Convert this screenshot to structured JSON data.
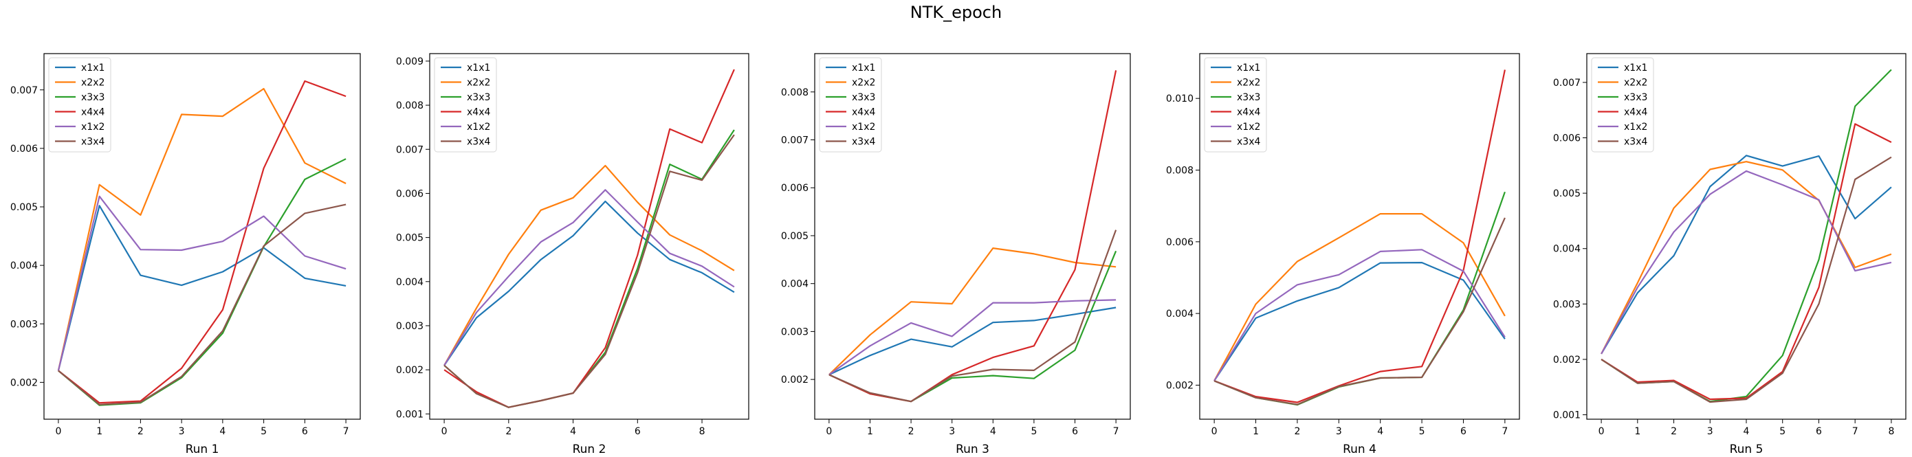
{
  "figure": {
    "title": "NTK_epoch"
  },
  "colors": {
    "x1x1": "#1f77b4",
    "x2x2": "#ff7f0e",
    "x3x3": "#2ca02c",
    "x4x4": "#d62728",
    "x1x2": "#9467bd",
    "x3x4": "#8c564b"
  },
  "chart_data": [
    {
      "type": "line",
      "title": "",
      "xlabel": "Run 1",
      "ylabel": "",
      "legend": "top-left",
      "grid": false,
      "x": [
        0,
        1,
        2,
        3,
        4,
        5,
        6,
        7
      ],
      "xlim": [
        -0.35,
        7.35
      ],
      "ylim": [
        0.00137,
        0.00762
      ],
      "xticks": [
        0,
        1,
        2,
        3,
        4,
        5,
        6,
        7
      ],
      "xtick_labels": [
        "0",
        "1",
        "2",
        "3",
        "4",
        "5",
        "6",
        "7"
      ],
      "yticks": [
        0.002,
        0.003,
        0.004,
        0.005,
        0.006,
        0.007
      ],
      "ytick_labels": [
        "0.002",
        "0.003",
        "0.004",
        "0.005",
        "0.006",
        "0.007"
      ],
      "series": [
        {
          "name": "x1x1",
          "values": [
            0.0022,
            0.00502,
            0.00383,
            0.00366,
            0.00389,
            0.0043,
            0.00378,
            0.00365
          ]
        },
        {
          "name": "x2x2",
          "values": [
            0.0022,
            0.00538,
            0.00486,
            0.00658,
            0.00655,
            0.00702,
            0.00575,
            0.0054
          ]
        },
        {
          "name": "x3x3",
          "values": [
            0.0022,
            0.00161,
            0.00165,
            0.00208,
            0.00284,
            0.00432,
            0.00547,
            0.00582
          ]
        },
        {
          "name": "x4x4",
          "values": [
            0.0022,
            0.00165,
            0.00168,
            0.00224,
            0.00324,
            0.00566,
            0.00715,
            0.00689
          ]
        },
        {
          "name": "x1x2",
          "values": [
            0.0022,
            0.00518,
            0.00427,
            0.00426,
            0.00441,
            0.00484,
            0.00416,
            0.00394
          ]
        },
        {
          "name": "x3x4",
          "values": [
            0.0022,
            0.00162,
            0.00166,
            0.0021,
            0.00288,
            0.00433,
            0.00489,
            0.00504
          ]
        }
      ]
    },
    {
      "type": "line",
      "title": "",
      "xlabel": "Run 2",
      "ylabel": "",
      "legend": "top-left",
      "grid": false,
      "x": [
        0,
        1,
        2,
        3,
        4,
        5,
        6,
        7,
        8,
        9
      ],
      "xlim": [
        -0.45,
        9.45
      ],
      "ylim": [
        0.00088,
        0.00917
      ],
      "xticks": [
        0,
        2,
        4,
        6,
        8
      ],
      "xtick_labels": [
        "0",
        "2",
        "4",
        "6",
        "8"
      ],
      "yticks": [
        0.001,
        0.002,
        0.003,
        0.004,
        0.005,
        0.006,
        0.007,
        0.008,
        0.009
      ],
      "ytick_labels": [
        "0.001",
        "0.002",
        "0.003",
        "0.004",
        "0.005",
        "0.006",
        "0.007",
        "0.008",
        "0.009"
      ],
      "series": [
        {
          "name": "x1x1",
          "values": [
            0.0021,
            0.00318,
            0.00378,
            0.0045,
            0.00504,
            0.00582,
            0.0051,
            0.0045,
            0.0042,
            0.00376
          ]
        },
        {
          "name": "x2x2",
          "values": [
            0.0021,
            0.0034,
            0.00462,
            0.00562,
            0.0059,
            0.00663,
            0.0058,
            0.00506,
            0.0047,
            0.00425
          ]
        },
        {
          "name": "x3x3",
          "values": [
            0.0021,
            0.00146,
            0.00115,
            0.0013,
            0.00147,
            0.0024,
            0.0043,
            0.00666,
            0.00632,
            0.00744
          ]
        },
        {
          "name": "x4x4",
          "values": [
            0.002,
            0.0015,
            0.00115,
            0.0013,
            0.00147,
            0.0025,
            0.0046,
            0.00746,
            0.00715,
            0.00881
          ]
        },
        {
          "name": "x1x2",
          "values": [
            0.0021,
            0.0033,
            0.00412,
            0.0049,
            0.00534,
            0.00608,
            0.00535,
            0.00464,
            0.00435,
            0.00388
          ]
        },
        {
          "name": "x3x4",
          "values": [
            0.0021,
            0.00146,
            0.00115,
            0.0013,
            0.00147,
            0.00235,
            0.0042,
            0.0065,
            0.0063,
            0.00733
          ]
        }
      ]
    },
    {
      "type": "line",
      "title": "",
      "xlabel": "Run 3",
      "ylabel": "",
      "legend": "top-left",
      "grid": false,
      "x": [
        0,
        1,
        2,
        3,
        4,
        5,
        6,
        7
      ],
      "xlim": [
        -0.35,
        7.35
      ],
      "ylim": [
        0.00117,
        0.0088
      ],
      "xticks": [
        0,
        1,
        2,
        3,
        4,
        5,
        6,
        7
      ],
      "xtick_labels": [
        "0",
        "1",
        "2",
        "3",
        "4",
        "5",
        "6",
        "7"
      ],
      "yticks": [
        0.002,
        0.003,
        0.004,
        0.005,
        0.006,
        0.007,
        0.008
      ],
      "ytick_labels": [
        "0.002",
        "0.003",
        "0.004",
        "0.005",
        "0.006",
        "0.007",
        "0.008"
      ],
      "series": [
        {
          "name": "x1x1",
          "values": [
            0.0021,
            0.0025,
            0.00284,
            0.00268,
            0.00319,
            0.00323,
            0.00336,
            0.0035
          ]
        },
        {
          "name": "x2x2",
          "values": [
            0.0021,
            0.00293,
            0.00362,
            0.00358,
            0.00474,
            0.00462,
            0.00444,
            0.00435
          ]
        },
        {
          "name": "x3x3",
          "values": [
            0.0021,
            0.0017,
            0.00154,
            0.00203,
            0.00208,
            0.00202,
            0.00261,
            0.00468
          ]
        },
        {
          "name": "x4x4",
          "values": [
            0.0021,
            0.0017,
            0.00154,
            0.0021,
            0.00246,
            0.0027,
            0.00429,
            0.00845
          ]
        },
        {
          "name": "x1x2",
          "values": [
            0.0021,
            0.0027,
            0.00318,
            0.0029,
            0.0036,
            0.0036,
            0.00364,
            0.00366
          ]
        },
        {
          "name": "x3x4",
          "values": [
            0.0021,
            0.00172,
            0.00154,
            0.00207,
            0.00221,
            0.00219,
            0.00278,
            0.00512
          ]
        }
      ]
    },
    {
      "type": "line",
      "title": "",
      "xlabel": "Run 4",
      "ylabel": "",
      "legend": "top-left",
      "grid": false,
      "x": [
        0,
        1,
        2,
        3,
        4,
        5,
        6,
        7
      ],
      "xlim": [
        -0.35,
        7.35
      ],
      "ylim": [
        0.00105,
        0.01125
      ],
      "xticks": [
        0,
        1,
        2,
        3,
        4,
        5,
        6,
        7
      ],
      "xtick_labels": [
        "0",
        "1",
        "2",
        "3",
        "4",
        "5",
        "6",
        "7"
      ],
      "yticks": [
        0.002,
        0.004,
        0.006,
        0.008,
        0.01
      ],
      "ytick_labels": [
        "0.002",
        "0.004",
        "0.006",
        "0.008",
        "0.010"
      ],
      "series": [
        {
          "name": "x1x1",
          "values": [
            0.00212,
            0.00387,
            0.00435,
            0.00472,
            0.00541,
            0.00542,
            0.00493,
            0.00329
          ]
        },
        {
          "name": "x2x2",
          "values": [
            0.00212,
            0.00426,
            0.00545,
            0.00611,
            0.00678,
            0.00678,
            0.00597,
            0.00393
          ]
        },
        {
          "name": "x3x3",
          "values": [
            0.00212,
            0.00165,
            0.00145,
            0.00195,
            0.0022,
            0.00222,
            0.0041,
            0.00739
          ]
        },
        {
          "name": "x4x4",
          "values": [
            0.00212,
            0.00168,
            0.00152,
            0.00198,
            0.00238,
            0.00252,
            0.0052,
            0.0108
          ]
        },
        {
          "name": "x1x2",
          "values": [
            0.00212,
            0.004,
            0.0048,
            0.00508,
            0.00573,
            0.00578,
            0.00518,
            0.00334
          ]
        },
        {
          "name": "x3x4",
          "values": [
            0.00212,
            0.00165,
            0.00146,
            0.00196,
            0.0022,
            0.00222,
            0.00405,
            0.00667
          ]
        }
      ]
    },
    {
      "type": "line",
      "title": "",
      "xlabel": "Run 5",
      "ylabel": "",
      "legend": "top-left",
      "grid": false,
      "x": [
        0,
        1,
        2,
        3,
        4,
        5,
        6,
        7,
        8
      ],
      "xlim": [
        -0.4,
        8.4
      ],
      "ylim": [
        0.00092,
        0.00752
      ],
      "xticks": [
        0,
        1,
        2,
        3,
        4,
        5,
        6,
        7,
        8
      ],
      "xtick_labels": [
        "0",
        "1",
        "2",
        "3",
        "4",
        "5",
        "6",
        "7",
        "8"
      ],
      "yticks": [
        0.001,
        0.002,
        0.003,
        0.004,
        0.005,
        0.006,
        0.007
      ],
      "ytick_labels": [
        "0.001",
        "0.002",
        "0.003",
        "0.004",
        "0.005",
        "0.006",
        "0.007"
      ],
      "series": [
        {
          "name": "x1x1",
          "values": [
            0.0021,
            0.0032,
            0.00387,
            0.00512,
            0.00568,
            0.00549,
            0.00567,
            0.00454,
            0.00511
          ]
        },
        {
          "name": "x2x2",
          "values": [
            0.0021,
            0.00338,
            0.00473,
            0.00543,
            0.00557,
            0.00542,
            0.00487,
            0.00366,
            0.0039
          ]
        },
        {
          "name": "x3x3",
          "values": [
            0.002,
            0.00157,
            0.0016,
            0.00124,
            0.00133,
            0.00207,
            0.0038,
            0.00657,
            0.00723
          ]
        },
        {
          "name": "x4x4",
          "values": [
            0.002,
            0.00159,
            0.00162,
            0.00128,
            0.0013,
            0.00178,
            0.0033,
            0.00625,
            0.00592
          ]
        },
        {
          "name": "x1x2",
          "values": [
            0.0021,
            0.0033,
            0.0043,
            0.00498,
            0.0054,
            0.00515,
            0.00488,
            0.0036,
            0.00375
          ]
        },
        {
          "name": "x3x4",
          "values": [
            0.002,
            0.00157,
            0.0016,
            0.00123,
            0.00128,
            0.00175,
            0.003,
            0.00525,
            0.00565
          ]
        }
      ]
    }
  ]
}
